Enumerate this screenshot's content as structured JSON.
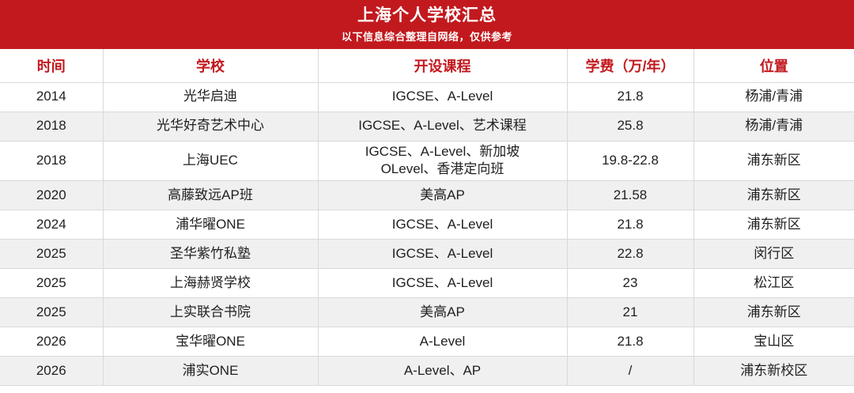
{
  "banner": {
    "title": "上海个人学校汇总",
    "subtitle": "以下信息综合整理自网络，仅供参考"
  },
  "colors": {
    "accent_red": "#c2191e",
    "alt_row_bg": "#f0f0f1",
    "border": "#d9d9d9"
  },
  "table": {
    "columns": [
      {
        "key": "time",
        "label": "时间"
      },
      {
        "key": "school",
        "label": "学校"
      },
      {
        "key": "courses",
        "label": "开设课程"
      },
      {
        "key": "tuition",
        "label": "学费（万/年）"
      },
      {
        "key": "location",
        "label": "位置"
      }
    ],
    "rows": [
      {
        "time": "2014",
        "school": "光华启迪",
        "courses": "IGCSE、A-Level",
        "tuition": "21.8",
        "location": "杨浦/青浦"
      },
      {
        "time": "2018",
        "school": "光华好奇艺术中心",
        "courses": "IGCSE、A-Level、艺术课程",
        "tuition": "25.8",
        "location": "杨浦/青浦"
      },
      {
        "time": "2018",
        "school": "上海UEC",
        "courses": "IGCSE、A-Level、新加坡OLevel、香港定向班",
        "tuition": "19.8-22.8",
        "location": "浦东新区"
      },
      {
        "time": "2020",
        "school": "高藤致远AP班",
        "courses": "美高AP",
        "tuition": "21.58",
        "location": "浦东新区"
      },
      {
        "time": "2024",
        "school": "浦华曜ONE",
        "courses": "IGCSE、A-Level",
        "tuition": "21.8",
        "location": "浦东新区"
      },
      {
        "time": "2025",
        "school": "圣华紫竹私塾",
        "courses": "IGCSE、A-Level",
        "tuition": "22.8",
        "location": "闵行区"
      },
      {
        "time": "2025",
        "school": "上海赫贤学校",
        "courses": "IGCSE、A-Level",
        "tuition": "23",
        "location": "松江区"
      },
      {
        "time": "2025",
        "school": "上实联合书院",
        "courses": "美高AP",
        "tuition": "21",
        "location": "浦东新区"
      },
      {
        "time": "2026",
        "school": "宝华曜ONE",
        "courses": "A-Level",
        "tuition": "21.8",
        "location": "宝山区"
      },
      {
        "time": "2026",
        "school": "浦实ONE",
        "courses": "A-Level、AP",
        "tuition": "/",
        "location": "浦东新校区"
      }
    ]
  }
}
